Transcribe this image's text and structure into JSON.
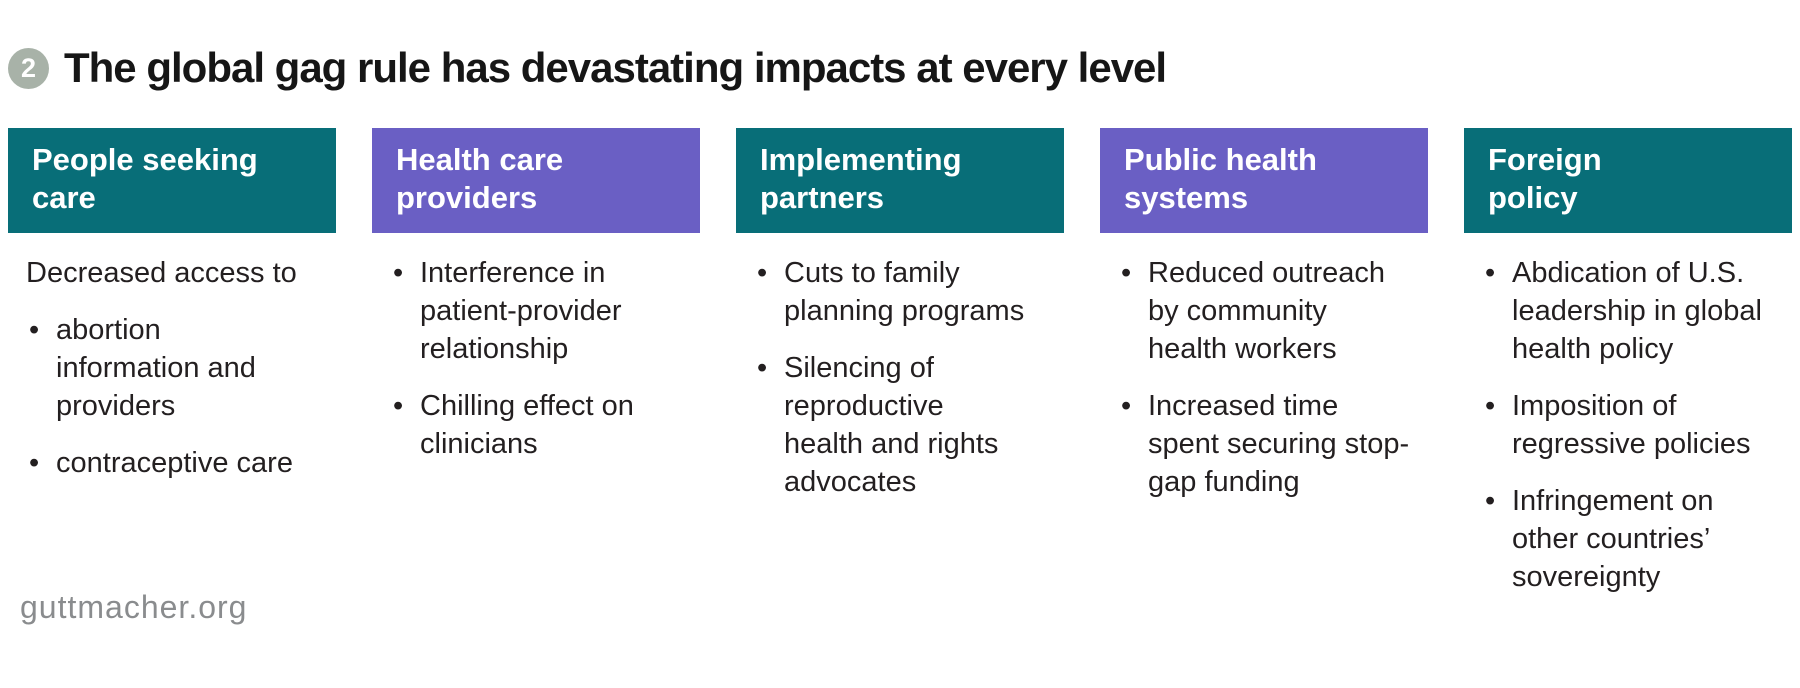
{
  "title": {
    "badge_number": "2",
    "text": "The global gag rule has devastating impacts at every level"
  },
  "colors": {
    "teal": "#086E78",
    "purple": "#6A5FC4",
    "badge": "#A8B2A8",
    "header_text": "#FFFFFF",
    "body_text": "#231F20",
    "footer_gray": "#8A8C8E"
  },
  "columns": [
    {
      "header": "People seeking\ncare",
      "color": "teal",
      "lead": "Decreased access to",
      "bullets": [
        "abortion\ninformation and\nproviders",
        "contraceptive care"
      ]
    },
    {
      "header": "Health care\nproviders",
      "color": "purple",
      "bullets": [
        "Interference in\npatient-provider\nrelationship",
        "Chilling effect on\nclinicians"
      ]
    },
    {
      "header": "Implementing\npartners",
      "color": "teal",
      "bullets": [
        "Cuts to family\nplanning programs",
        "Silencing of\nreproductive\nhealth and rights\nadvocates"
      ]
    },
    {
      "header": "Public health\nsystems",
      "color": "purple",
      "bullets": [
        "Reduced outreach\nby community\nhealth workers",
        "Increased time\nspent securing stop-\ngap funding"
      ]
    },
    {
      "header": "Foreign\npolicy",
      "color": "teal",
      "bullets": [
        "Abdication of U.S.\nleadership in global\nhealth policy",
        "Imposition of\nregressive policies",
        "Infringement on\nother countries’\nsovereignty"
      ]
    }
  ],
  "footer": {
    "site": "guttmacher.org"
  }
}
